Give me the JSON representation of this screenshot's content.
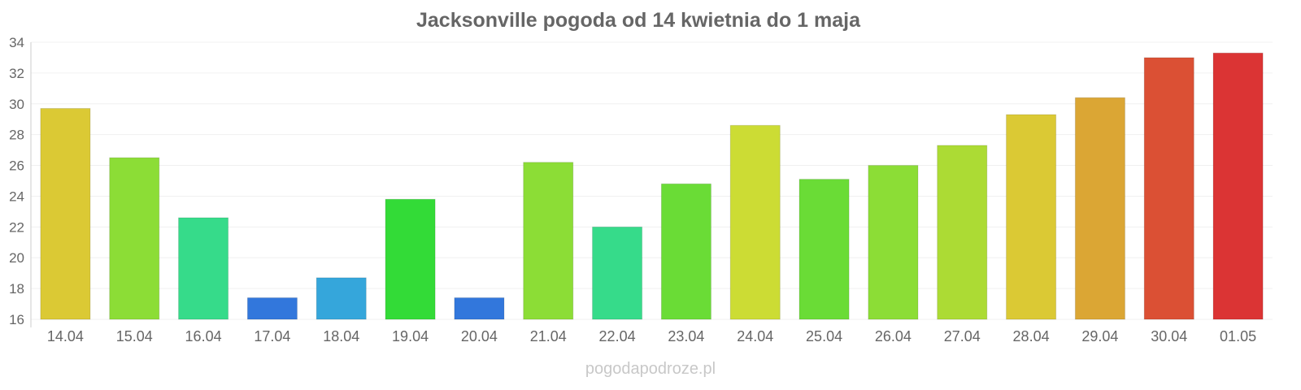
{
  "chart_data": {
    "type": "bar",
    "title": "Jacksonville pogoda od 14 kwietnia do 1 maja",
    "xlabel": "",
    "ylabel": "",
    "ylim": [
      16,
      34
    ],
    "yticks": [
      "16",
      "18",
      "20",
      "22",
      "24",
      "26",
      "28",
      "30",
      "32",
      "34"
    ],
    "grid": true,
    "categories": [
      "14.04",
      "15.04",
      "16.04",
      "17.04",
      "18.04",
      "19.04",
      "20.04",
      "21.04",
      "22.04",
      "23.04",
      "24.04",
      "25.04",
      "26.04",
      "27.04",
      "28.04",
      "29.04",
      "30.04",
      "01.05"
    ],
    "values": [
      29.7,
      26.5,
      22.6,
      17.4,
      18.7,
      23.8,
      17.4,
      26.2,
      22.0,
      24.8,
      28.6,
      25.1,
      26.0,
      27.3,
      29.3,
      30.4,
      33.0,
      33.3
    ],
    "colors": [
      "#dbc934",
      "#8cdd36",
      "#36db8a",
      "#3277dc",
      "#35a6db",
      "#33db37",
      "#3277dc",
      "#8cdd36",
      "#36db8a",
      "#6adc36",
      "#ccdc34",
      "#6adc36",
      "#8cdd36",
      "#acdb34",
      "#dbc934",
      "#dba634",
      "#db5034",
      "#db3434"
    ]
  },
  "footer": {
    "watermark": "pogodapodroze.pl"
  }
}
